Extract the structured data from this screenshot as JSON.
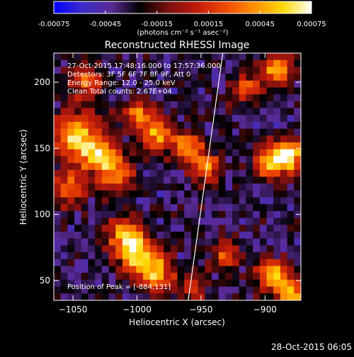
{
  "colorbar": {
    "tick_labels": [
      "-0.00075",
      "-0.00045",
      "-0.00015",
      "0.00015",
      "0.00045",
      "0.00075"
    ],
    "tick_values": [
      -0.00075,
      -0.00045,
      -0.00015,
      0.00015,
      0.00045,
      0.00075
    ],
    "range": [
      -0.00075,
      0.00075
    ],
    "unit_label": "(photons cm⁻² s⁻¹ asec⁻²)",
    "colormap": [
      "#0000ff",
      "#3c2cc8",
      "#5a2a96",
      "#000000",
      "#7a1010",
      "#c01a0a",
      "#f04a00",
      "#ff9000",
      "#ffd800",
      "#ffffff"
    ]
  },
  "chart_data": {
    "type": "heatmap",
    "title": "Reconstructed RHESSI Image",
    "xlabel": "Heliocentric X (arcsec)",
    "ylabel": "Heliocentric Y (arcsec)",
    "xlim": [
      -1065,
      -872
    ],
    "ylim": [
      35,
      222
    ],
    "xticks": [
      -1050,
      -1000,
      -950,
      -900
    ],
    "xtick_labels": [
      "−1050",
      "−1000",
      "−950",
      "−900"
    ],
    "yticks": [
      50,
      100,
      150,
      200
    ],
    "ytick_labels": [
      "50",
      "100",
      "150",
      "200"
    ],
    "limb_line": {
      "x1": -960,
      "y1": 35,
      "x2": -933,
      "y2": 222
    },
    "grid_size": [
      36,
      36
    ],
    "blobs": [
      {
        "x": -1048,
        "y": 160,
        "amp": 0.95,
        "s": 12
      },
      {
        "x": -1030,
        "y": 145,
        "amp": 0.9,
        "s": 10
      },
      {
        "x": -1015,
        "y": 130,
        "amp": 0.7,
        "s": 9
      },
      {
        "x": -1055,
        "y": 120,
        "amp": 0.6,
        "s": 10
      },
      {
        "x": -1010,
        "y": 85,
        "amp": 0.8,
        "s": 9
      },
      {
        "x": -1000,
        "y": 70,
        "amp": 0.9,
        "s": 10
      },
      {
        "x": -985,
        "y": 55,
        "amp": 0.9,
        "s": 9
      },
      {
        "x": -1000,
        "y": 175,
        "amp": 0.7,
        "s": 8
      },
      {
        "x": -985,
        "y": 160,
        "amp": 0.8,
        "s": 9
      },
      {
        "x": -1040,
        "y": 200,
        "amp": 0.6,
        "s": 9
      },
      {
        "x": -960,
        "y": 150,
        "amp": 0.8,
        "s": 8
      },
      {
        "x": -945,
        "y": 135,
        "amp": 0.7,
        "s": 8
      },
      {
        "x": -895,
        "y": 140,
        "amp": 0.9,
        "s": 9
      },
      {
        "x": -880,
        "y": 145,
        "amp": 0.95,
        "s": 8
      },
      {
        "x": -890,
        "y": 210,
        "amp": 0.8,
        "s": 9
      },
      {
        "x": -915,
        "y": 195,
        "amp": 0.6,
        "s": 8
      },
      {
        "x": -930,
        "y": 70,
        "amp": 0.6,
        "s": 8
      },
      {
        "x": -895,
        "y": 55,
        "amp": 0.9,
        "s": 8
      },
      {
        "x": -880,
        "y": 40,
        "amp": 0.9,
        "s": 7
      },
      {
        "x": -955,
        "y": 45,
        "amp": 0.5,
        "s": 7
      }
    ],
    "annotations": {
      "time_range": "27-Oct-2015 17:48:16.000 to 17:57:36.000",
      "detectors": "Detectors: 3F 5F 6F 7F 8F 9F, Att 0",
      "energy": "Energy Range: 12.0 - 25.0 keV",
      "clean": "Clean     Total counts: 2.67E+04",
      "peak": "Position of Peak = [-884,131]"
    }
  },
  "footer": {
    "timestamp": "28-Oct-2015 06:05"
  }
}
